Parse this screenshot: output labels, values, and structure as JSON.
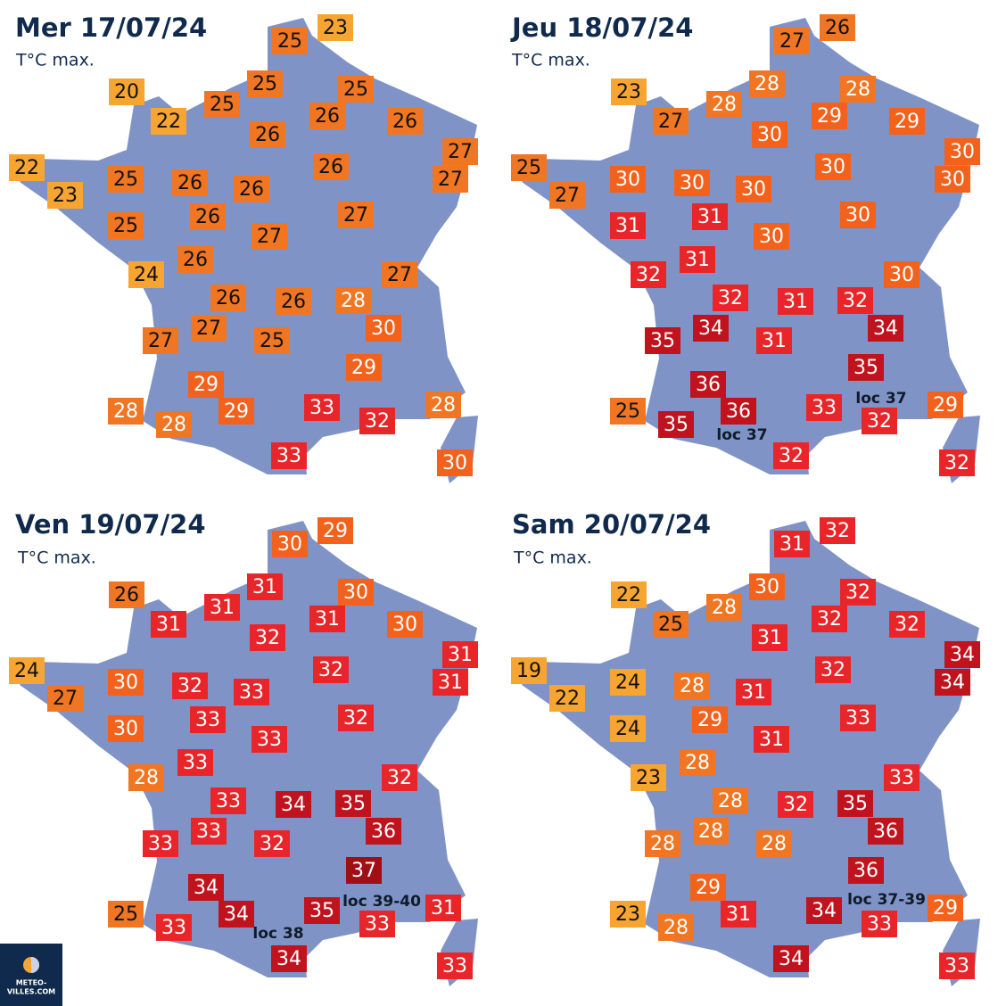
{
  "panels": [
    {
      "title": "Mer 17/07/24",
      "subtitle": "T°C max.",
      "temperatures": [
        23,
        25,
        20,
        25,
        25,
        25,
        22,
        26,
        26,
        26,
        27,
        22,
        25,
        26,
        26,
        26,
        27,
        23,
        25,
        26,
        27,
        27,
        26,
        24,
        26,
        26,
        28,
        27,
        30,
        27,
        27,
        25,
        29,
        29,
        33,
        28,
        28,
        28,
        29,
        32,
        33,
        30
      ],
      "notes": []
    },
    {
      "title": "Jeu 18/07/24",
      "subtitle": "T°C max.",
      "temperatures": [
        26,
        27,
        23,
        28,
        28,
        28,
        27,
        29,
        29,
        30,
        30,
        25,
        30,
        30,
        30,
        30,
        30,
        27,
        31,
        31,
        30,
        30,
        31,
        32,
        32,
        31,
        32,
        30,
        34,
        34,
        35,
        31,
        35,
        36,
        33,
        29,
        25,
        35,
        36,
        32,
        32,
        32
      ],
      "notes": [
        "loc 37",
        "loc 37"
      ]
    },
    {
      "title": "Ven 19/07/24",
      "subtitle": "T°C max.",
      "temperatures": [
        29,
        30,
        26,
        31,
        30,
        31,
        31,
        31,
        30,
        32,
        31,
        24,
        30,
        32,
        33,
        32,
        31,
        27,
        30,
        33,
        32,
        33,
        33,
        28,
        33,
        34,
        35,
        32,
        36,
        33,
        33,
        32,
        37,
        34,
        35,
        31,
        25,
        33,
        34,
        33,
        34,
        33
      ],
      "notes": [
        "loc 39-40",
        "loc 38"
      ]
    },
    {
      "title": "Sam 20/07/24",
      "subtitle": "T°C max.",
      "temperatures": [
        32,
        31,
        22,
        30,
        32,
        28,
        25,
        32,
        32,
        31,
        34,
        19,
        24,
        28,
        31,
        32,
        34,
        22,
        24,
        29,
        33,
        31,
        28,
        23,
        28,
        32,
        35,
        33,
        36,
        28,
        28,
        28,
        36,
        29,
        34,
        29,
        23,
        28,
        31,
        33,
        34,
        33
      ],
      "notes": [
        "loc 37-39"
      ]
    }
  ],
  "logo": {
    "lines": [
      "METEO-",
      "VILLES.COM"
    ]
  }
}
